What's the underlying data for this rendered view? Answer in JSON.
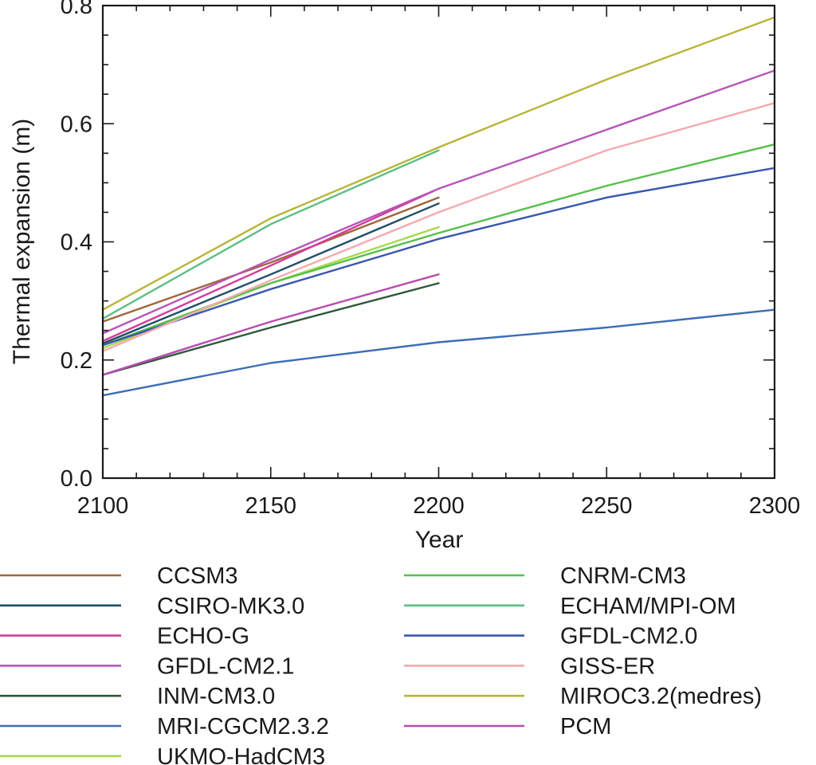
{
  "chart_data": {
    "type": "line",
    "title": "",
    "xlabel": "Year",
    "ylabel": "Thermal expansion (m)",
    "xlim": [
      2100,
      2300
    ],
    "ylim": [
      0.0,
      0.8
    ],
    "x_ticks": [
      "2100",
      "2150",
      "2200",
      "2250",
      "2300"
    ],
    "y_ticks": [
      "0.0",
      "0.2",
      "0.4",
      "0.6",
      "0.8"
    ],
    "grid": false,
    "legend_position": "below",
    "series": [
      {
        "name": "CCSM3",
        "color": "#a0673a",
        "x": [
          2100,
          2150,
          2200
        ],
        "y": [
          0.265,
          0.365,
          0.475
        ]
      },
      {
        "name": "CSIRO-MK3.0",
        "color": "#1f4e66",
        "x": [
          2100,
          2150,
          2200
        ],
        "y": [
          0.228,
          0.345,
          0.465
        ]
      },
      {
        "name": "ECHO-G",
        "color": "#d23c9a",
        "x": [
          2100,
          2150,
          2200
        ],
        "y": [
          0.232,
          0.36,
          0.49
        ]
      },
      {
        "name": "GFDL-CM2.1",
        "color": "#b855b8",
        "x": [
          2100,
          2150,
          2200,
          2250,
          2300
        ],
        "y": [
          0.245,
          0.37,
          0.49,
          0.59,
          0.69
        ]
      },
      {
        "name": "INM-CM3.0",
        "color": "#2e5a3a",
        "x": [
          2100,
          2150,
          2200
        ],
        "y": [
          0.175,
          0.255,
          0.33
        ]
      },
      {
        "name": "MRI-CGCM2.3.2",
        "color": "#3d6db5",
        "x": [
          2100,
          2150,
          2200,
          2250,
          2300
        ],
        "y": [
          0.14,
          0.195,
          0.23,
          0.255,
          0.285
        ]
      },
      {
        "name": "UKMO-HadCM3",
        "color": "#a8d94a",
        "x": [
          2100,
          2150,
          2200
        ],
        "y": [
          0.22,
          0.33,
          0.425
        ]
      },
      {
        "name": "CNRM-CM3",
        "color": "#56bf4c",
        "x": [
          2100,
          2150,
          2200,
          2250,
          2300
        ],
        "y": [
          0.225,
          0.33,
          0.415,
          0.495,
          0.565
        ]
      },
      {
        "name": "ECHAM/MPI-OM",
        "color": "#5dbf84",
        "x": [
          2100,
          2150,
          2200
        ],
        "y": [
          0.27,
          0.43,
          0.555
        ]
      },
      {
        "name": "GFDL-CM2.0",
        "color": "#3a57b0",
        "x": [
          2100,
          2150,
          2200,
          2250,
          2300
        ],
        "y": [
          0.225,
          0.32,
          0.405,
          0.475,
          0.525
        ]
      },
      {
        "name": "GISS-ER",
        "color": "#f5aab0",
        "x": [
          2100,
          2150,
          2200,
          2250,
          2300
        ],
        "y": [
          0.215,
          0.335,
          0.45,
          0.555,
          0.635
        ]
      },
      {
        "name": "MIROC3.2(medres)",
        "color": "#b8b53a",
        "x": [
          2100,
          2150,
          2200,
          2250,
          2300
        ],
        "y": [
          0.285,
          0.44,
          0.56,
          0.675,
          0.78
        ]
      },
      {
        "name": "PCM",
        "color": "#b84cb0",
        "x": [
          2100,
          2150,
          2200
        ],
        "y": [
          0.175,
          0.265,
          0.345
        ]
      }
    ]
  }
}
